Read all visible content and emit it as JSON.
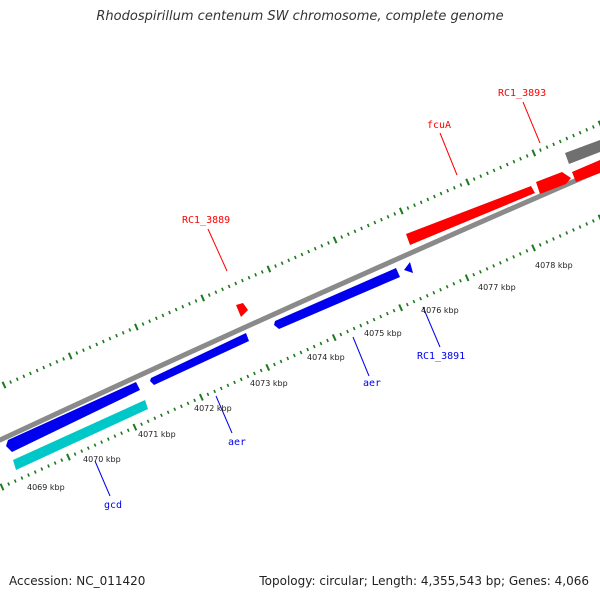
{
  "title": "Rhodospirillum centenum SW chromosome, complete genome",
  "footer": {
    "accession": "Accession: NC_011420",
    "summary": "Topology: circular; Length: 4,355,543 bp; Genes: 4,066"
  },
  "colors": {
    "forward": "#ff0000",
    "reverse": "#0000ee",
    "rna": "#00c8c8",
    "other": "#707070",
    "backbone": "#8a8a8a",
    "ticks": "#1e7a1e"
  },
  "scale_labels": [
    "4069 kbp",
    "4070 kbp",
    "4071 kbp",
    "4072 kbp",
    "4073 kbp",
    "4074 kbp",
    "4075 kbp",
    "4076 kbp",
    "4077 kbp",
    "4078 kbp"
  ],
  "gene_labels": {
    "rc1_3893": "RC1_3893",
    "fcua": "fcuA",
    "rc1_3889": "RC1_3889",
    "rc1_3891": "RC1_3891",
    "aer_1": "aer",
    "aer_2": "aer",
    "gcd": "gcd"
  }
}
